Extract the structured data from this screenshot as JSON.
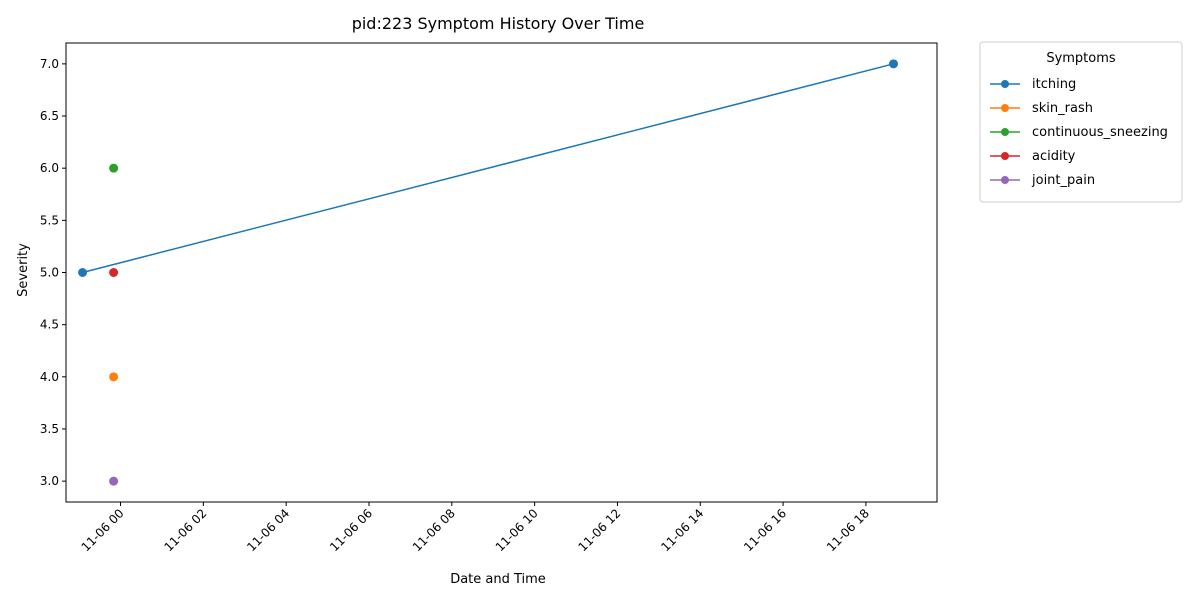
{
  "chart_data": {
    "type": "line",
    "title": "pid:223 Symptom History Over Time",
    "xlabel": "Date and Time",
    "ylabel": "Severity",
    "x_scale": "datetime",
    "xlim": [
      "2024-11-05T22:41",
      "2024-11-06T19:43"
    ],
    "ylim": [
      2.8,
      7.2
    ],
    "x_ticks": [
      "2024-11-06T00:00",
      "2024-11-06T02:00",
      "2024-11-06T04:00",
      "2024-11-06T06:00",
      "2024-11-06T08:00",
      "2024-11-06T10:00",
      "2024-11-06T12:00",
      "2024-11-06T14:00",
      "2024-11-06T16:00",
      "2024-11-06T18:00"
    ],
    "x_tick_labels": [
      "11-06 00",
      "11-06 02",
      "11-06 04",
      "11-06 06",
      "11-06 08",
      "11-06 10",
      "11-06 12",
      "11-06 14",
      "11-06 16",
      "11-06 18"
    ],
    "y_ticks": [
      3.0,
      3.5,
      4.0,
      4.5,
      5.0,
      5.5,
      6.0,
      6.5,
      7.0
    ],
    "y_tick_labels": [
      "3.0",
      "3.5",
      "4.0",
      "4.5",
      "5.0",
      "5.5",
      "6.0",
      "6.5",
      "7.0"
    ],
    "grid": false,
    "legend": {
      "title": "Symptoms",
      "placement": "outside upper right"
    },
    "series": [
      {
        "name": "itching",
        "color": "#1f77b4",
        "points": [
          {
            "x": "2024-11-05T23:05",
            "y": 5
          },
          {
            "x": "2024-11-06T18:40",
            "y": 7
          }
        ]
      },
      {
        "name": "skin_rash",
        "color": "#ff7f0e",
        "points": [
          {
            "x": "2024-11-05T23:50",
            "y": 4
          }
        ]
      },
      {
        "name": "continuous_sneezing",
        "color": "#2ca02c",
        "points": [
          {
            "x": "2024-11-05T23:50",
            "y": 6
          }
        ]
      },
      {
        "name": "acidity",
        "color": "#d62728",
        "points": [
          {
            "x": "2024-11-05T23:50",
            "y": 5
          }
        ]
      },
      {
        "name": "joint_pain",
        "color": "#9467bd",
        "points": [
          {
            "x": "2024-11-05T23:50",
            "y": 3
          }
        ]
      }
    ]
  }
}
